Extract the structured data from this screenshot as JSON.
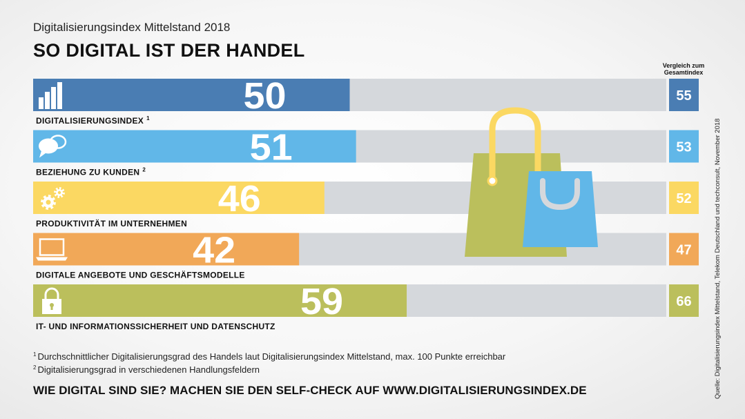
{
  "header": {
    "subtitle": "Digitalisierungsindex Mittelstand 2018",
    "title": "SO DIGITAL IST DER HANDEL"
  },
  "chart_data": {
    "type": "bar",
    "orientation": "horizontal",
    "title": "SO DIGITAL IST DER HANDEL",
    "subtitle": "Digitalisierungsindex Mittelstand 2018",
    "xlim": [
      0,
      100
    ],
    "grid": false,
    "comparison_label": "Vergleich zum Gesamtindex",
    "categories": [
      "DIGITALISIERUNGSINDEX",
      "BEZIEHUNG ZU KUNDEN",
      "PRODUKTIVITÄT IM UNTERNEHMEN",
      "DIGITALE ANGEBOTE UND GESCHÄFTSMODELLE",
      "IT- UND INFORMATIONSSICHERHEIT UND DATENSCHUTZ"
    ],
    "footnote_marks": [
      "1",
      "2",
      "",
      "",
      ""
    ],
    "values": [
      50,
      51,
      46,
      42,
      59
    ],
    "comparison_values": [
      55,
      53,
      52,
      47,
      66
    ],
    "colors": [
      "#4a7db3",
      "#61b7e8",
      "#fbd862",
      "#f1a858",
      "#bbbf5c"
    ],
    "comparison_colors": [
      "#4a7db3",
      "#61b7e8",
      "#fbd862",
      "#f1a858",
      "#bbbf5c"
    ],
    "icons": [
      "bar-chart-icon",
      "speech-bubbles-icon",
      "gears-icon",
      "laptop-icon",
      "padlock-icon"
    ]
  },
  "illustration": {
    "icon": "shopping-bags-icon"
  },
  "footnotes": [
    {
      "mark": "1",
      "text": "Durchschnittlicher Digitalisierungsgrad des Handels laut Digitalisierungsindex Mittelstand, max. 100 Punkte erreichbar"
    },
    {
      "mark": "2",
      "text": "Digitalisierungsgrad in verschiedenen Handlungsfeldern"
    }
  ],
  "cta": "WIE DIGITAL SIND SIE? MACHEN SIE DEN SELF-CHECK AUF WWW.DIGITALISIERUNGSINDEX.DE",
  "source": "Quelle: Digitalisierungsindex Mittelstand, Telekom Deutschland und techconsult, November 2018"
}
